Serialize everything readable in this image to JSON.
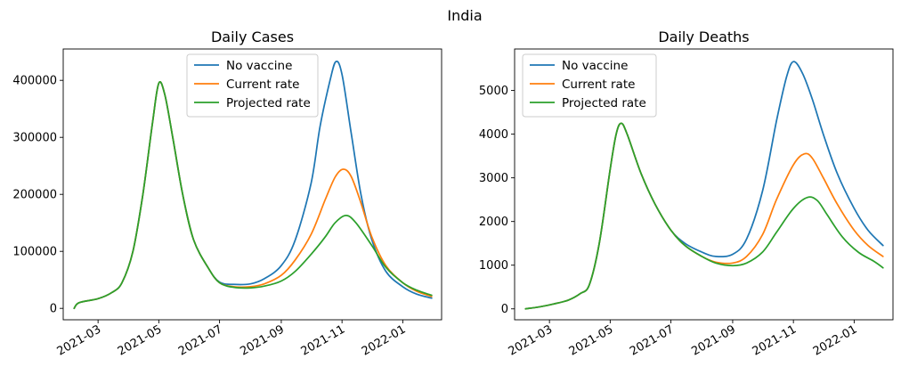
{
  "figure": {
    "suptitle": "India"
  },
  "colors": {
    "No vaccine": "#1f77b4",
    "Current rate": "#ff7f0e",
    "Projected rate": "#2ca02c"
  },
  "chart_data": [
    {
      "type": "line",
      "title": "Daily Cases",
      "xlabel": "",
      "ylabel": "",
      "x_ticks": [
        "2021-03",
        "2021-05",
        "2021-07",
        "2021-09",
        "2021-11",
        "2022-01"
      ],
      "y_ticks": [
        "0",
        "100000",
        "200000",
        "300000",
        "400000"
      ],
      "xlim": [
        "2021-01-25",
        "2022-02-09"
      ],
      "ylim": [
        -20000,
        455000
      ],
      "legend": "upper center",
      "series": [
        {
          "name": "No vaccine",
          "points": [
            [
              "2021-02-05",
              0
            ],
            [
              "2021-02-10",
              10000
            ],
            [
              "2021-03-01",
              17000
            ],
            [
              "2021-03-15",
              28000
            ],
            [
              "2021-03-25",
              45000
            ],
            [
              "2021-04-05",
              100000
            ],
            [
              "2021-04-15",
              200000
            ],
            [
              "2021-04-25",
              330000
            ],
            [
              "2021-05-01",
              395000
            ],
            [
              "2021-05-07",
              375000
            ],
            [
              "2021-05-15",
              300000
            ],
            [
              "2021-05-25",
              200000
            ],
            [
              "2021-06-05",
              120000
            ],
            [
              "2021-06-20",
              70000
            ],
            [
              "2021-07-01",
              46000
            ],
            [
              "2021-07-15",
              42000
            ],
            [
              "2021-08-01",
              43000
            ],
            [
              "2021-08-15",
              52000
            ],
            [
              "2021-09-01",
              75000
            ],
            [
              "2021-09-15",
              120000
            ],
            [
              "2021-10-01",
              220000
            ],
            [
              "2021-10-10",
              320000
            ],
            [
              "2021-10-20",
              400000
            ],
            [
              "2021-10-26",
              433000
            ],
            [
              "2021-11-01",
              410000
            ],
            [
              "2021-11-10",
              310000
            ],
            [
              "2021-11-20",
              200000
            ],
            [
              "2021-12-01",
              120000
            ],
            [
              "2021-12-15",
              65000
            ],
            [
              "2022-01-01",
              38000
            ],
            [
              "2022-01-15",
              25000
            ],
            [
              "2022-01-30",
              18000
            ]
          ]
        },
        {
          "name": "Current rate",
          "points": [
            [
              "2021-02-05",
              0
            ],
            [
              "2021-02-10",
              10000
            ],
            [
              "2021-03-01",
              17000
            ],
            [
              "2021-03-15",
              28000
            ],
            [
              "2021-03-25",
              45000
            ],
            [
              "2021-04-05",
              100000
            ],
            [
              "2021-04-15",
              200000
            ],
            [
              "2021-04-25",
              330000
            ],
            [
              "2021-05-01",
              395000
            ],
            [
              "2021-05-07",
              375000
            ],
            [
              "2021-05-15",
              300000
            ],
            [
              "2021-05-25",
              200000
            ],
            [
              "2021-06-05",
              120000
            ],
            [
              "2021-06-20",
              70000
            ],
            [
              "2021-07-01",
              45000
            ],
            [
              "2021-07-15",
              38000
            ],
            [
              "2021-08-01",
              38000
            ],
            [
              "2021-08-15",
              43000
            ],
            [
              "2021-09-01",
              58000
            ],
            [
              "2021-09-15",
              85000
            ],
            [
              "2021-10-01",
              130000
            ],
            [
              "2021-10-15",
              190000
            ],
            [
              "2021-10-25",
              230000
            ],
            [
              "2021-11-02",
              244000
            ],
            [
              "2021-11-10",
              232000
            ],
            [
              "2021-11-20",
              185000
            ],
            [
              "2021-12-01",
              125000
            ],
            [
              "2021-12-15",
              75000
            ],
            [
              "2022-01-01",
              45000
            ],
            [
              "2022-01-15",
              30000
            ],
            [
              "2022-01-30",
              21000
            ]
          ]
        },
        {
          "name": "Projected rate",
          "points": [
            [
              "2021-02-05",
              0
            ],
            [
              "2021-02-10",
              10000
            ],
            [
              "2021-03-01",
              17000
            ],
            [
              "2021-03-15",
              28000
            ],
            [
              "2021-03-25",
              45000
            ],
            [
              "2021-04-05",
              100000
            ],
            [
              "2021-04-15",
              200000
            ],
            [
              "2021-04-25",
              330000
            ],
            [
              "2021-05-01",
              395000
            ],
            [
              "2021-05-07",
              375000
            ],
            [
              "2021-05-15",
              300000
            ],
            [
              "2021-05-25",
              200000
            ],
            [
              "2021-06-05",
              120000
            ],
            [
              "2021-06-20",
              70000
            ],
            [
              "2021-07-01",
              45000
            ],
            [
              "2021-07-15",
              37000
            ],
            [
              "2021-08-01",
              36000
            ],
            [
              "2021-08-15",
              39000
            ],
            [
              "2021-09-01",
              48000
            ],
            [
              "2021-09-15",
              65000
            ],
            [
              "2021-10-01",
              95000
            ],
            [
              "2021-10-15",
              125000
            ],
            [
              "2021-10-25",
              150000
            ],
            [
              "2021-11-05",
              163000
            ],
            [
              "2021-11-15",
              150000
            ],
            [
              "2021-12-01",
              110000
            ],
            [
              "2021-12-15",
              72000
            ],
            [
              "2022-01-01",
              45000
            ],
            [
              "2022-01-15",
              32000
            ],
            [
              "2022-01-30",
              23000
            ]
          ]
        }
      ]
    },
    {
      "type": "line",
      "title": "Daily Deaths",
      "xlabel": "",
      "ylabel": "",
      "x_ticks": [
        "2021-03",
        "2021-05",
        "2021-07",
        "2021-09",
        "2021-11",
        "2022-01"
      ],
      "y_ticks": [
        "0",
        "1000",
        "2000",
        "3000",
        "4000",
        "5000"
      ],
      "xlim": [
        "2021-01-25",
        "2022-02-09"
      ],
      "ylim": [
        -250,
        5950
      ],
      "legend": "upper left",
      "series": [
        {
          "name": "No vaccine",
          "points": [
            [
              "2021-02-05",
              0
            ],
            [
              "2021-02-20",
              50
            ],
            [
              "2021-03-05",
              110
            ],
            [
              "2021-03-20",
              200
            ],
            [
              "2021-04-01",
              350
            ],
            [
              "2021-04-10",
              550
            ],
            [
              "2021-04-20",
              1500
            ],
            [
              "2021-05-01",
              3200
            ],
            [
              "2021-05-07",
              4000
            ],
            [
              "2021-05-12",
              4250
            ],
            [
              "2021-05-18",
              4000
            ],
            [
              "2021-06-01",
              3100
            ],
            [
              "2021-06-15",
              2400
            ],
            [
              "2021-07-01",
              1800
            ],
            [
              "2021-07-15",
              1500
            ],
            [
              "2021-08-01",
              1300
            ],
            [
              "2021-08-15",
              1200
            ],
            [
              "2021-09-01",
              1250
            ],
            [
              "2021-09-15",
              1600
            ],
            [
              "2021-10-01",
              2700
            ],
            [
              "2021-10-15",
              4300
            ],
            [
              "2021-10-25",
              5300
            ],
            [
              "2021-11-01",
              5660
            ],
            [
              "2021-11-10",
              5400
            ],
            [
              "2021-11-20",
              4800
            ],
            [
              "2021-12-01",
              4000
            ],
            [
              "2021-12-15",
              3100
            ],
            [
              "2022-01-01",
              2300
            ],
            [
              "2022-01-15",
              1800
            ],
            [
              "2022-01-30",
              1450
            ]
          ]
        },
        {
          "name": "Current rate",
          "points": [
            [
              "2021-02-05",
              0
            ],
            [
              "2021-02-20",
              50
            ],
            [
              "2021-03-05",
              110
            ],
            [
              "2021-03-20",
              200
            ],
            [
              "2021-04-01",
              350
            ],
            [
              "2021-04-10",
              550
            ],
            [
              "2021-04-20",
              1500
            ],
            [
              "2021-05-01",
              3200
            ],
            [
              "2021-05-07",
              4000
            ],
            [
              "2021-05-12",
              4250
            ],
            [
              "2021-05-18",
              4000
            ],
            [
              "2021-06-01",
              3100
            ],
            [
              "2021-06-15",
              2400
            ],
            [
              "2021-07-01",
              1800
            ],
            [
              "2021-07-15",
              1450
            ],
            [
              "2021-08-01",
              1200
            ],
            [
              "2021-08-15",
              1070
            ],
            [
              "2021-09-01",
              1050
            ],
            [
              "2021-09-15",
              1200
            ],
            [
              "2021-10-01",
              1700
            ],
            [
              "2021-10-15",
              2500
            ],
            [
              "2021-11-01",
              3300
            ],
            [
              "2021-11-12",
              3550
            ],
            [
              "2021-11-20",
              3450
            ],
            [
              "2021-12-01",
              3000
            ],
            [
              "2021-12-15",
              2400
            ],
            [
              "2022-01-01",
              1800
            ],
            [
              "2022-01-15",
              1450
            ],
            [
              "2022-01-30",
              1200
            ]
          ]
        },
        {
          "name": "Projected rate",
          "points": [
            [
              "2021-02-05",
              0
            ],
            [
              "2021-02-20",
              50
            ],
            [
              "2021-03-05",
              110
            ],
            [
              "2021-03-20",
              200
            ],
            [
              "2021-04-01",
              350
            ],
            [
              "2021-04-10",
              550
            ],
            [
              "2021-04-20",
              1500
            ],
            [
              "2021-05-01",
              3200
            ],
            [
              "2021-05-07",
              4000
            ],
            [
              "2021-05-12",
              4250
            ],
            [
              "2021-05-18",
              4000
            ],
            [
              "2021-06-01",
              3100
            ],
            [
              "2021-06-15",
              2400
            ],
            [
              "2021-07-01",
              1800
            ],
            [
              "2021-07-15",
              1450
            ],
            [
              "2021-08-01",
              1200
            ],
            [
              "2021-08-15",
              1050
            ],
            [
              "2021-09-01",
              990
            ],
            [
              "2021-09-15",
              1050
            ],
            [
              "2021-10-01",
              1300
            ],
            [
              "2021-10-15",
              1750
            ],
            [
              "2021-11-01",
              2300
            ],
            [
              "2021-11-15",
              2550
            ],
            [
              "2021-11-25",
              2480
            ],
            [
              "2021-12-05",
              2150
            ],
            [
              "2021-12-20",
              1650
            ],
            [
              "2022-01-05",
              1300
            ],
            [
              "2022-01-20",
              1100
            ],
            [
              "2022-01-30",
              940
            ]
          ]
        }
      ]
    }
  ]
}
